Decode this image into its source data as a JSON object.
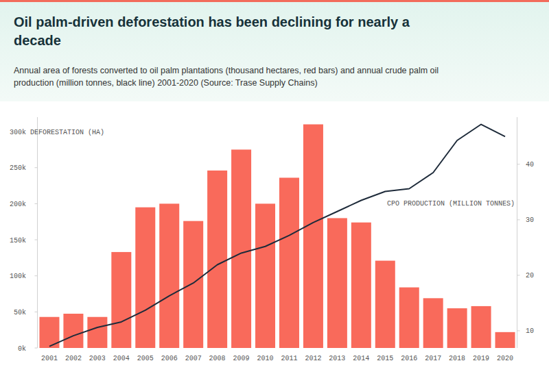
{
  "chart_data": {
    "type": "bar",
    "title": "Oil palm-driven deforestation has been declining for nearly a decade",
    "subtitle": "Annual area of forests converted to oil palm plantations (thousand hectares, red bars) and annual crude palm oil production (million tonnes, black line) 2001-2020 (Source: Trase Supply Chains)",
    "categories": [
      "2001",
      "2002",
      "2003",
      "2004",
      "2005",
      "2006",
      "2007",
      "2008",
      "2009",
      "2010",
      "2011",
      "2012",
      "2013",
      "2014",
      "2015",
      "2016",
      "2017",
      "2018",
      "2019",
      "2020"
    ],
    "series": [
      {
        "name": "DEFORESTATION (HA)",
        "type": "bar",
        "color": "#f96a5b",
        "values": [
          43000,
          47500,
          43000,
          133000,
          195000,
          200000,
          176000,
          246000,
          275000,
          200000,
          236000,
          310000,
          180000,
          174000,
          121000,
          84000,
          69000,
          55000,
          58000,
          22000
        ]
      },
      {
        "name": "CPO PRODUCTION (MILLION TONNES)",
        "type": "line",
        "axis": "y2",
        "color": "#1e2b3a",
        "values": [
          7.2,
          9.1,
          10.6,
          11.6,
          13.7,
          16.3,
          18.6,
          21.9,
          24.0,
          25.2,
          27.2,
          29.5,
          31.5,
          33.5,
          35.1,
          35.6,
          38.5,
          44.3,
          47.2,
          45.0
        ]
      }
    ],
    "ylim": [
      0,
      320000
    ],
    "yticks": [
      {
        "value": 0,
        "label": "0k"
      },
      {
        "value": 50000,
        "label": "50k"
      },
      {
        "value": 100000,
        "label": "100k"
      },
      {
        "value": 150000,
        "label": "150k"
      },
      {
        "value": 200000,
        "label": "200k"
      },
      {
        "value": 250000,
        "label": "250k"
      },
      {
        "value": 300000,
        "label": "300k"
      }
    ],
    "y2lim": [
      6.9,
      48.5
    ],
    "y2ticks": [
      10,
      20,
      30,
      40
    ],
    "grid": false
  }
}
